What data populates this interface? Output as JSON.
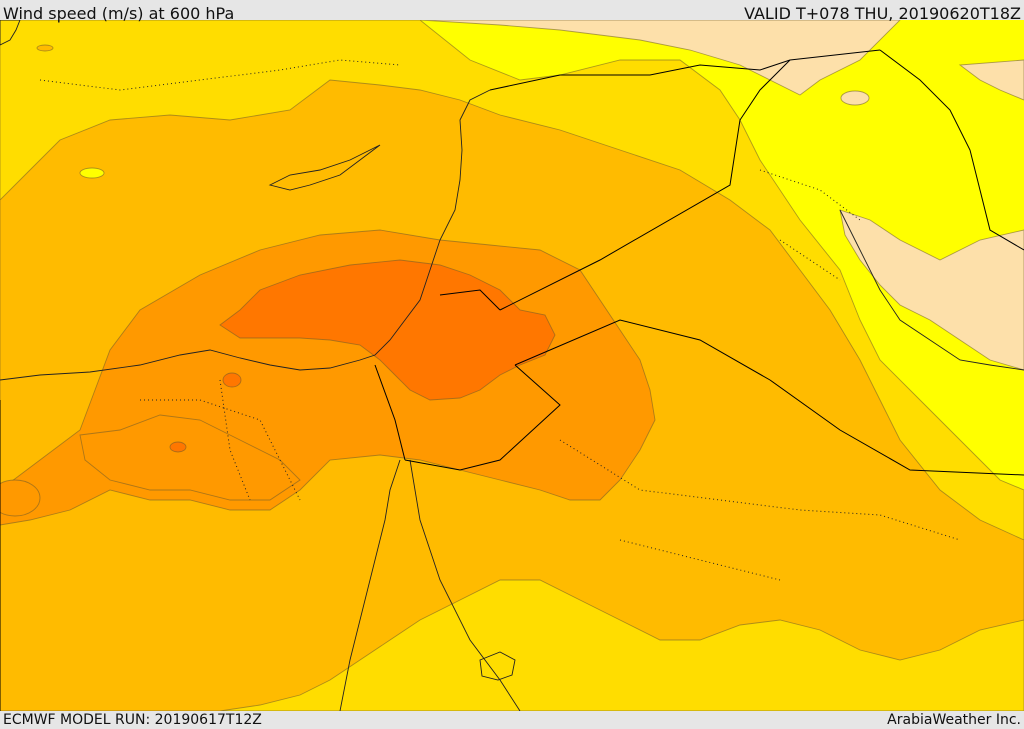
{
  "header": {
    "title": "Wind speed (m/s) at 600 hPa",
    "valid": "VALID T+078 THU, 20190620T18Z"
  },
  "footer": {
    "model_run": "ECMWF MODEL RUN: 20190617T12Z",
    "credit": "ArabiaWeather Inc."
  },
  "colors": {
    "level_1_pale": "#fde0aa",
    "level_2_yellow": "#ffff00",
    "level_3_gold": "#ffdd00",
    "level_4_amber": "#ffbb00",
    "level_5_orange": "#ff9900",
    "level_6_dark_orange": "#ff7700",
    "water": "#ffffff",
    "border_line": "#000000"
  }
}
